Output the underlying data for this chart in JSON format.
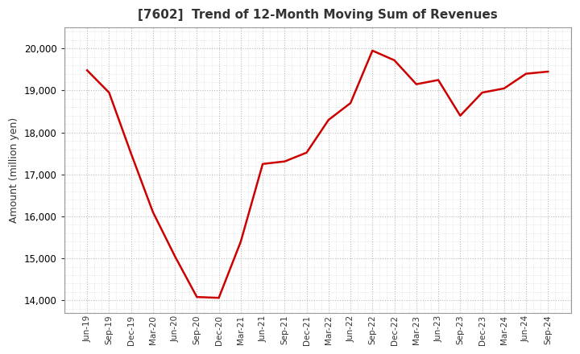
{
  "title": "[7602]  Trend of 12-Month Moving Sum of Revenues",
  "ylabel": "Amount (million yen)",
  "line_color": "#CC0000",
  "line_width": 1.8,
  "background_color": "#FFFFFF",
  "plot_bg_color": "#FFFFFF",
  "grid_color": "#BBBBBB",
  "ylim": [
    13700,
    20500
  ],
  "yticks": [
    14000,
    15000,
    16000,
    17000,
    18000,
    19000,
    20000
  ],
  "x_labels": [
    "Jun-19",
    "Sep-19",
    "Dec-19",
    "Mar-20",
    "Jun-20",
    "Sep-20",
    "Dec-20",
    "Mar-21",
    "Jun-21",
    "Sep-21",
    "Dec-21",
    "Mar-22",
    "Jun-22",
    "Sep-22",
    "Dec-22",
    "Mar-23",
    "Jun-23",
    "Sep-23",
    "Dec-23",
    "Mar-24",
    "Jun-24",
    "Sep-24"
  ],
  "values": [
    19480,
    18950,
    17500,
    16100,
    15050,
    14080,
    14060,
    15400,
    17250,
    17310,
    17520,
    18300,
    18700,
    19950,
    19720,
    19150,
    19250,
    18400,
    18950,
    19050,
    19400,
    19450
  ],
  "title_color": "#333333",
  "tick_color": "#333333",
  "spine_color": "#999999"
}
